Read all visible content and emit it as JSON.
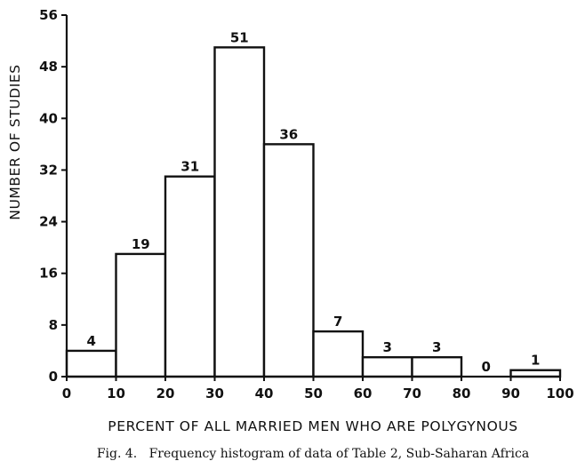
{
  "chart_data": {
    "type": "bar",
    "histogram": true,
    "bins": [
      {
        "x0": 0,
        "x1": 10,
        "value": 4
      },
      {
        "x0": 10,
        "x1": 20,
        "value": 19
      },
      {
        "x0": 20,
        "x1": 30,
        "value": 31
      },
      {
        "x0": 30,
        "x1": 40,
        "value": 51
      },
      {
        "x0": 40,
        "x1": 50,
        "value": 36
      },
      {
        "x0": 50,
        "x1": 60,
        "value": 7
      },
      {
        "x0": 60,
        "x1": 70,
        "value": 3
      },
      {
        "x0": 70,
        "x1": 80,
        "value": 3
      },
      {
        "x0": 80,
        "x1": 90,
        "value": 0
      },
      {
        "x0": 90,
        "x1": 100,
        "value": 1
      }
    ],
    "xlabel": "PERCENT OF ALL MARRIED MEN WHO ARE POLYGYNOUS",
    "ylabel": "NUMBER OF STUDIES",
    "xlim": [
      0,
      100
    ],
    "ylim": [
      0,
      56
    ],
    "xticks": [
      0,
      10,
      20,
      30,
      40,
      50,
      60,
      70,
      80,
      90,
      100
    ],
    "yticks": [
      0,
      8,
      16,
      24,
      32,
      40,
      48,
      56
    ],
    "grid": false,
    "legend": "none",
    "caption": "Fig. 4.   Frequency histogram of data of Table 2, Sub-Saharan Africa"
  }
}
